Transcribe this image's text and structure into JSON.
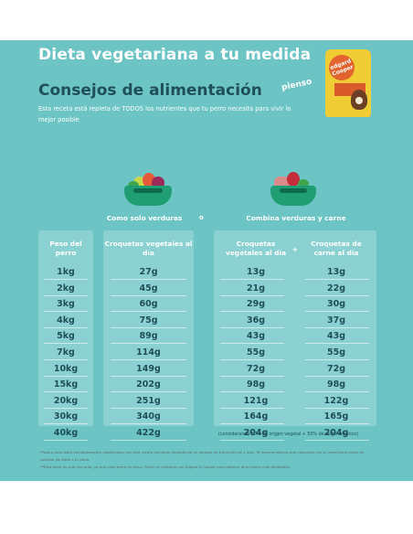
{
  "header": {
    "title": "Dieta vegetariana a tu medida",
    "subtitle": "Consejos de alimentación",
    "description": "Esta receta está repleta de TODOS los nutrientes que tu perro necesita para vivir lo mejor posible",
    "pienso_label": "pienso"
  },
  "product": {
    "logo_text": "edgard Cooper",
    "pack_text": "ZANAHORIA & CHIRIVÍA"
  },
  "columns": {
    "only_veg_title": "Como solo verduras",
    "or_label": "o",
    "combo_title": "Combina verduras y carne",
    "weight_header": "Peso del perro",
    "veg_header": "Croquetas vegetales al día",
    "combo_veg_header": "Croquetas vegetales al día",
    "plus_label": "+",
    "meat_header": "Croquetas de carne al día"
  },
  "table": {
    "rows": [
      {
        "weight": "1kg",
        "veg": "27g",
        "combo_veg": "13g",
        "meat": "13g"
      },
      {
        "weight": "2kg",
        "veg": "45g",
        "combo_veg": "21g",
        "meat": "22g"
      },
      {
        "weight": "3kg",
        "veg": "60g",
        "combo_veg": "29g",
        "meat": "30g"
      },
      {
        "weight": "4kg",
        "veg": "75g",
        "combo_veg": "36g",
        "meat": "37g"
      },
      {
        "weight": "5kg",
        "veg": "89g",
        "combo_veg": "43g",
        "meat": "43g"
      },
      {
        "weight": "7kg",
        "veg": "114g",
        "combo_veg": "55g",
        "meat": "55g"
      },
      {
        "weight": "10kg",
        "veg": "149g",
        "combo_veg": "72g",
        "meat": "72g"
      },
      {
        "weight": "15kg",
        "veg": "202g",
        "combo_veg": "98g",
        "meat": "98g"
      },
      {
        "weight": "20kg",
        "veg": "251g",
        "combo_veg": "121g",
        "meat": "122g"
      },
      {
        "weight": "30kg",
        "veg": "340g",
        "combo_veg": "164g",
        "meat": "165g"
      },
      {
        "weight": "40kg",
        "veg": "422g",
        "combo_veg": "204g",
        "meat": "204g"
      }
    ]
  },
  "footnote": "(considerando 50% de origen vegetal + 50% de origen cárnico)",
  "notes": [
    "*Pasa a esta dieta completamente vegetariana con esta receta completa después de un periodo de transición de 4 días. Te recomendamos que consultes con tu veterinario antes de cambiar de dieta a tu perro.",
    "**Esta tabla es solo una guía, ya que cada perro es único. Ponte en contacto con Edgard & Cooper para obtener direcciones más detalladas."
  ],
  "colors": {
    "background": "#6cc4c4",
    "dark_text": "#1f4f5a",
    "brand_yellow": "#f0cc35",
    "brand_orange": "#e3642f",
    "bowl_green": "#1f9d73"
  },
  "icons": [
    "vegetable-bowl-icon",
    "meat-vegetable-bowl-icon",
    "product-pack-image"
  ]
}
